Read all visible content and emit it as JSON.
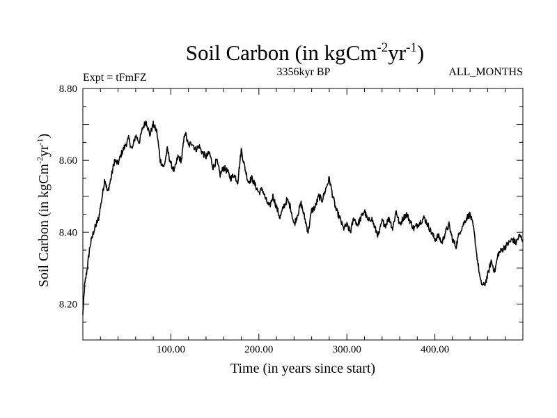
{
  "header": {
    "title_main": "Soil Carbon (in kgCm",
    "title_exp1": "-2",
    "title_mid": "yr",
    "title_exp2": "-1",
    "title_end": ")",
    "expt_label": "Expt = tFmFZ",
    "period_label": "3356kyr BP",
    "months_label": "ALL_MONTHS"
  },
  "chart_data": {
    "type": "line",
    "title": "Soil Carbon (in kgCm-2yr-1)",
    "xlabel": "Time (in years since start)",
    "ylabel": "Soil Carbon (in kgCm-2yr-1)",
    "ylabel_parts": {
      "main": "Soil Carbon (in kgCm",
      "exp1": "-2",
      "mid": "yr",
      "exp2": "-1",
      "end": ")"
    },
    "xlim": [
      0,
      500
    ],
    "ylim": [
      8.1,
      8.8
    ],
    "x_ticks": [
      {
        "value": 100,
        "label": "100.00"
      },
      {
        "value": 200,
        "label": "200.00"
      },
      {
        "value": 300,
        "label": "300.00"
      },
      {
        "value": 400,
        "label": "400.00"
      }
    ],
    "y_ticks": [
      {
        "value": 8.2,
        "label": "8.20"
      },
      {
        "value": 8.4,
        "label": "8.40"
      },
      {
        "value": 8.6,
        "label": "8.60"
      },
      {
        "value": 8.8,
        "label": "8.80"
      }
    ],
    "series": [
      {
        "name": "Soil Carbon",
        "x": [
          0,
          2,
          5,
          8,
          12,
          15,
          18,
          22,
          25,
          28,
          32,
          36,
          40,
          44,
          48,
          52,
          56,
          60,
          64,
          68,
          72,
          76,
          80,
          84,
          88,
          92,
          96,
          100,
          104,
          108,
          112,
          116,
          120,
          124,
          128,
          132,
          136,
          140,
          144,
          148,
          152,
          156,
          160,
          164,
          168,
          172,
          176,
          180,
          184,
          188,
          192,
          196,
          200,
          204,
          208,
          212,
          216,
          220,
          224,
          228,
          232,
          236,
          240,
          244,
          248,
          252,
          256,
          260,
          264,
          268,
          272,
          276,
          280,
          284,
          288,
          292,
          296,
          300,
          304,
          308,
          312,
          316,
          320,
          324,
          328,
          332,
          336,
          340,
          344,
          348,
          352,
          356,
          360,
          364,
          368,
          372,
          376,
          380,
          384,
          388,
          392,
          396,
          400,
          404,
          408,
          412,
          416,
          420,
          424,
          428,
          432,
          436,
          440,
          444,
          448,
          452,
          456,
          460,
          464,
          468,
          472,
          476,
          480,
          484,
          488,
          492,
          496,
          500
        ],
        "values": [
          8.17,
          8.25,
          8.3,
          8.36,
          8.4,
          8.42,
          8.44,
          8.5,
          8.55,
          8.51,
          8.55,
          8.6,
          8.59,
          8.62,
          8.64,
          8.66,
          8.63,
          8.67,
          8.65,
          8.69,
          8.71,
          8.67,
          8.7,
          8.68,
          8.6,
          8.58,
          8.63,
          8.59,
          8.57,
          8.61,
          8.6,
          8.68,
          8.64,
          8.65,
          8.63,
          8.64,
          8.62,
          8.61,
          8.62,
          8.58,
          8.6,
          8.56,
          8.58,
          8.57,
          8.55,
          8.56,
          8.54,
          8.63,
          8.58,
          8.54,
          8.55,
          8.53,
          8.51,
          8.52,
          8.49,
          8.47,
          8.5,
          8.47,
          8.44,
          8.47,
          8.49,
          8.47,
          8.42,
          8.45,
          8.48,
          8.44,
          8.4,
          8.46,
          8.47,
          8.5,
          8.49,
          8.52,
          8.55,
          8.5,
          8.46,
          8.44,
          8.41,
          8.42,
          8.4,
          8.44,
          8.42,
          8.44,
          8.46,
          8.43,
          8.44,
          8.41,
          8.39,
          8.43,
          8.42,
          8.44,
          8.41,
          8.46,
          8.42,
          8.44,
          8.45,
          8.43,
          8.41,
          8.42,
          8.43,
          8.44,
          8.42,
          8.4,
          8.38,
          8.39,
          8.37,
          8.4,
          8.42,
          8.38,
          8.36,
          8.4,
          8.42,
          8.44,
          8.45,
          8.41,
          8.33,
          8.26,
          8.25,
          8.28,
          8.32,
          8.29,
          8.34,
          8.35,
          8.36,
          8.37,
          8.38,
          8.37,
          8.39,
          8.38
        ]
      }
    ],
    "grid": false
  }
}
